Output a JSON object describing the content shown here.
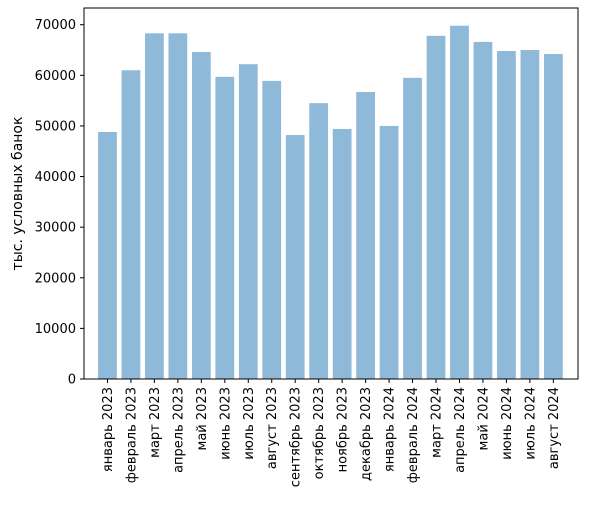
{
  "chart_data": {
    "type": "bar",
    "title": "",
    "xlabel": "",
    "ylabel": "тыс. условных банок",
    "categories": [
      "январь 2023",
      "февраль 2023",
      "март 2023",
      "апрель 2023",
      "май 2023",
      "июнь 2023",
      "июль 2023",
      "август 2023",
      "сентябрь 2023",
      "октябрь 2023",
      "ноябрь 2023",
      "декабрь 2023",
      "январь 2024",
      "февраль 2024",
      "март 2024",
      "апрель 2024",
      "май 2024",
      "июнь 2024",
      "июль 2024",
      "август 2024"
    ],
    "values": [
      48800,
      61000,
      68300,
      68300,
      64600,
      59700,
      62200,
      58900,
      48200,
      54500,
      49400,
      56700,
      50000,
      59500,
      67800,
      69800,
      66600,
      64800,
      65000,
      64200
    ],
    "ylim": [
      0,
      73300
    ],
    "yticks": [
      0,
      10000,
      20000,
      30000,
      40000,
      50000,
      60000,
      70000
    ],
    "grid": false,
    "legend": "none",
    "bar_color": "#8fb9d8",
    "axis_color": "#000000"
  }
}
